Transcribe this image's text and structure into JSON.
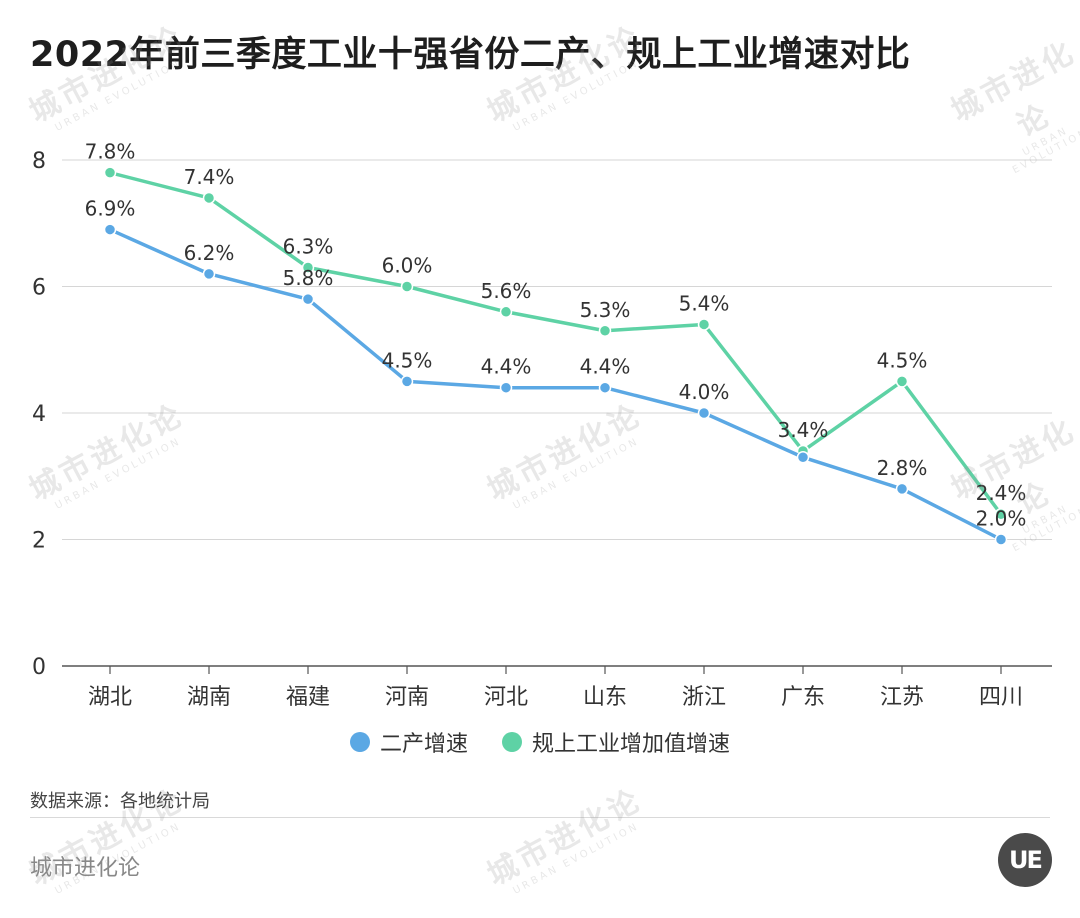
{
  "title": "2022年前三季度工业十强省份二产、规上工业增速对比",
  "source": "数据来源：各地统计局",
  "brand": "城市进化论",
  "logo_text": "UE",
  "watermark": {
    "cn": "城市进化论",
    "en": "URBAN EVOLUTION"
  },
  "colors": {
    "series1": "#5ba8e4",
    "series2": "#5ed2a5",
    "grid": "#d6d6d6",
    "axis": "#555555"
  },
  "chart_data": {
    "type": "line",
    "title": "2022年前三季度工业十强省份二产、规上工业增速对比",
    "categories": [
      "湖北",
      "湖南",
      "福建",
      "河南",
      "河北",
      "山东",
      "浙江",
      "广东",
      "江苏",
      "四川"
    ],
    "ylim": [
      0,
      8
    ],
    "yticks": [
      0,
      2,
      4,
      6,
      8
    ],
    "grid": true,
    "legend_position": "bottom",
    "xlabel": "",
    "ylabel": "",
    "series": [
      {
        "name": "二产增速",
        "color": "#5ba8e4",
        "values": [
          6.9,
          6.2,
          5.8,
          4.5,
          4.4,
          4.4,
          4.0,
          3.3,
          2.8,
          2.0
        ],
        "labels": [
          "6.9%",
          "6.2%",
          "5.8%",
          "4.5%",
          "4.4%",
          "4.4%",
          "4.0%",
          "",
          "2.8%",
          "2.0%"
        ]
      },
      {
        "name": "规上工业增加值增速",
        "color": "#5ed2a5",
        "values": [
          7.8,
          7.4,
          6.3,
          6.0,
          5.6,
          5.3,
          5.4,
          3.4,
          4.5,
          2.4
        ],
        "labels": [
          "7.8%",
          "7.4%",
          "6.3%",
          "6.0%",
          "5.6%",
          "5.3%",
          "5.4%",
          "3.4%",
          "4.5%",
          "2.4%"
        ]
      }
    ]
  }
}
